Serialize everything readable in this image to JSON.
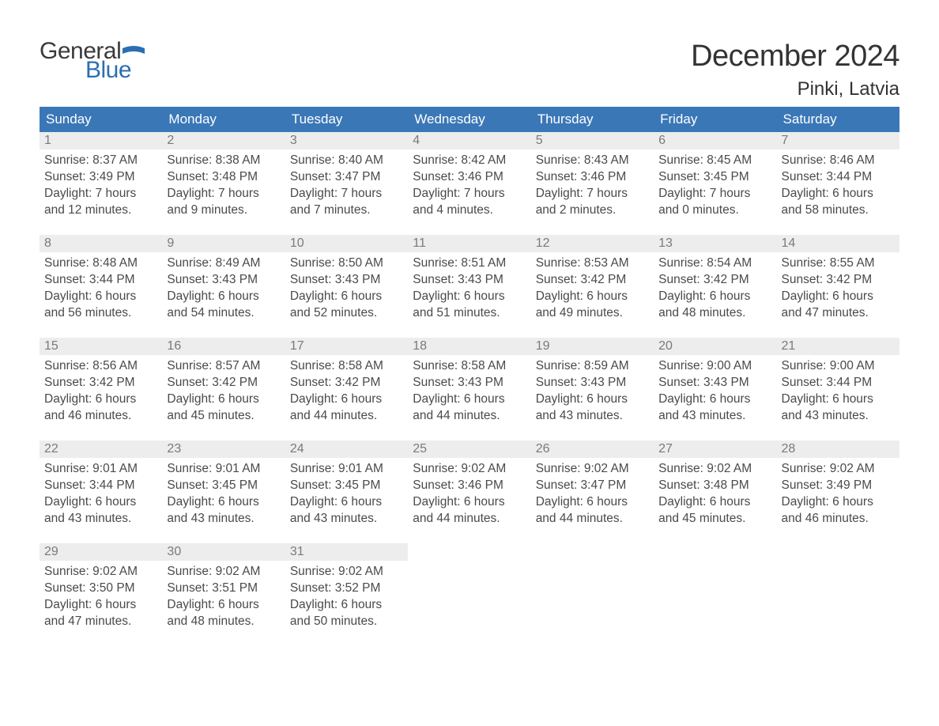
{
  "logo": {
    "word1": "General",
    "word2": "Blue",
    "flag_color": "#2b6fb0",
    "text_color_dark": "#3a3a3a"
  },
  "title": "December 2024",
  "location": "Pinki, Latvia",
  "colors": {
    "header_bg": "#3a77b7",
    "header_text": "#ffffff",
    "daynum_bg": "#ededed",
    "daynum_text": "#7a7a7a",
    "body_text": "#4a4a4a",
    "row_border": "#3a77b7",
    "page_bg": "#ffffff"
  },
  "fonts": {
    "title_size": 38,
    "location_size": 24,
    "header_size": 17,
    "body_size": 15.5
  },
  "weekdays": [
    "Sunday",
    "Monday",
    "Tuesday",
    "Wednesday",
    "Thursday",
    "Friday",
    "Saturday"
  ],
  "weeks": [
    [
      {
        "n": "1",
        "sunrise": "Sunrise: 8:37 AM",
        "sunset": "Sunset: 3:49 PM",
        "d1": "Daylight: 7 hours",
        "d2": "and 12 minutes."
      },
      {
        "n": "2",
        "sunrise": "Sunrise: 8:38 AM",
        "sunset": "Sunset: 3:48 PM",
        "d1": "Daylight: 7 hours",
        "d2": "and 9 minutes."
      },
      {
        "n": "3",
        "sunrise": "Sunrise: 8:40 AM",
        "sunset": "Sunset: 3:47 PM",
        "d1": "Daylight: 7 hours",
        "d2": "and 7 minutes."
      },
      {
        "n": "4",
        "sunrise": "Sunrise: 8:42 AM",
        "sunset": "Sunset: 3:46 PM",
        "d1": "Daylight: 7 hours",
        "d2": "and 4 minutes."
      },
      {
        "n": "5",
        "sunrise": "Sunrise: 8:43 AM",
        "sunset": "Sunset: 3:46 PM",
        "d1": "Daylight: 7 hours",
        "d2": "and 2 minutes."
      },
      {
        "n": "6",
        "sunrise": "Sunrise: 8:45 AM",
        "sunset": "Sunset: 3:45 PM",
        "d1": "Daylight: 7 hours",
        "d2": "and 0 minutes."
      },
      {
        "n": "7",
        "sunrise": "Sunrise: 8:46 AM",
        "sunset": "Sunset: 3:44 PM",
        "d1": "Daylight: 6 hours",
        "d2": "and 58 minutes."
      }
    ],
    [
      {
        "n": "8",
        "sunrise": "Sunrise: 8:48 AM",
        "sunset": "Sunset: 3:44 PM",
        "d1": "Daylight: 6 hours",
        "d2": "and 56 minutes."
      },
      {
        "n": "9",
        "sunrise": "Sunrise: 8:49 AM",
        "sunset": "Sunset: 3:43 PM",
        "d1": "Daylight: 6 hours",
        "d2": "and 54 minutes."
      },
      {
        "n": "10",
        "sunrise": "Sunrise: 8:50 AM",
        "sunset": "Sunset: 3:43 PM",
        "d1": "Daylight: 6 hours",
        "d2": "and 52 minutes."
      },
      {
        "n": "11",
        "sunrise": "Sunrise: 8:51 AM",
        "sunset": "Sunset: 3:43 PM",
        "d1": "Daylight: 6 hours",
        "d2": "and 51 minutes."
      },
      {
        "n": "12",
        "sunrise": "Sunrise: 8:53 AM",
        "sunset": "Sunset: 3:42 PM",
        "d1": "Daylight: 6 hours",
        "d2": "and 49 minutes."
      },
      {
        "n": "13",
        "sunrise": "Sunrise: 8:54 AM",
        "sunset": "Sunset: 3:42 PM",
        "d1": "Daylight: 6 hours",
        "d2": "and 48 minutes."
      },
      {
        "n": "14",
        "sunrise": "Sunrise: 8:55 AM",
        "sunset": "Sunset: 3:42 PM",
        "d1": "Daylight: 6 hours",
        "d2": "and 47 minutes."
      }
    ],
    [
      {
        "n": "15",
        "sunrise": "Sunrise: 8:56 AM",
        "sunset": "Sunset: 3:42 PM",
        "d1": "Daylight: 6 hours",
        "d2": "and 46 minutes."
      },
      {
        "n": "16",
        "sunrise": "Sunrise: 8:57 AM",
        "sunset": "Sunset: 3:42 PM",
        "d1": "Daylight: 6 hours",
        "d2": "and 45 minutes."
      },
      {
        "n": "17",
        "sunrise": "Sunrise: 8:58 AM",
        "sunset": "Sunset: 3:42 PM",
        "d1": "Daylight: 6 hours",
        "d2": "and 44 minutes."
      },
      {
        "n": "18",
        "sunrise": "Sunrise: 8:58 AM",
        "sunset": "Sunset: 3:43 PM",
        "d1": "Daylight: 6 hours",
        "d2": "and 44 minutes."
      },
      {
        "n": "19",
        "sunrise": "Sunrise: 8:59 AM",
        "sunset": "Sunset: 3:43 PM",
        "d1": "Daylight: 6 hours",
        "d2": "and 43 minutes."
      },
      {
        "n": "20",
        "sunrise": "Sunrise: 9:00 AM",
        "sunset": "Sunset: 3:43 PM",
        "d1": "Daylight: 6 hours",
        "d2": "and 43 minutes."
      },
      {
        "n": "21",
        "sunrise": "Sunrise: 9:00 AM",
        "sunset": "Sunset: 3:44 PM",
        "d1": "Daylight: 6 hours",
        "d2": "and 43 minutes."
      }
    ],
    [
      {
        "n": "22",
        "sunrise": "Sunrise: 9:01 AM",
        "sunset": "Sunset: 3:44 PM",
        "d1": "Daylight: 6 hours",
        "d2": "and 43 minutes."
      },
      {
        "n": "23",
        "sunrise": "Sunrise: 9:01 AM",
        "sunset": "Sunset: 3:45 PM",
        "d1": "Daylight: 6 hours",
        "d2": "and 43 minutes."
      },
      {
        "n": "24",
        "sunrise": "Sunrise: 9:01 AM",
        "sunset": "Sunset: 3:45 PM",
        "d1": "Daylight: 6 hours",
        "d2": "and 43 minutes."
      },
      {
        "n": "25",
        "sunrise": "Sunrise: 9:02 AM",
        "sunset": "Sunset: 3:46 PM",
        "d1": "Daylight: 6 hours",
        "d2": "and 44 minutes."
      },
      {
        "n": "26",
        "sunrise": "Sunrise: 9:02 AM",
        "sunset": "Sunset: 3:47 PM",
        "d1": "Daylight: 6 hours",
        "d2": "and 44 minutes."
      },
      {
        "n": "27",
        "sunrise": "Sunrise: 9:02 AM",
        "sunset": "Sunset: 3:48 PM",
        "d1": "Daylight: 6 hours",
        "d2": "and 45 minutes."
      },
      {
        "n": "28",
        "sunrise": "Sunrise: 9:02 AM",
        "sunset": "Sunset: 3:49 PM",
        "d1": "Daylight: 6 hours",
        "d2": "and 46 minutes."
      }
    ],
    [
      {
        "n": "29",
        "sunrise": "Sunrise: 9:02 AM",
        "sunset": "Sunset: 3:50 PM",
        "d1": "Daylight: 6 hours",
        "d2": "and 47 minutes."
      },
      {
        "n": "30",
        "sunrise": "Sunrise: 9:02 AM",
        "sunset": "Sunset: 3:51 PM",
        "d1": "Daylight: 6 hours",
        "d2": "and 48 minutes."
      },
      {
        "n": "31",
        "sunrise": "Sunrise: 9:02 AM",
        "sunset": "Sunset: 3:52 PM",
        "d1": "Daylight: 6 hours",
        "d2": "and 50 minutes."
      },
      null,
      null,
      null,
      null
    ]
  ]
}
